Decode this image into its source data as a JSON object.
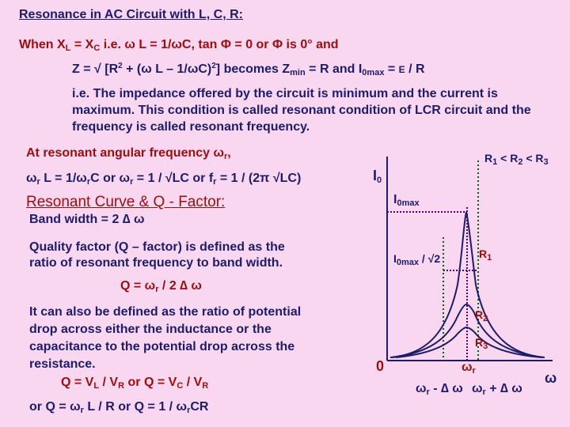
{
  "slide": {
    "title": "Resonance in AC Circuit with L, C, R:",
    "condition": {
      "pre": "When X",
      "l_sub": "L",
      "eq": " = X",
      "c_sub": "C",
      "rest": "   i.e. ω L = 1/ωC,   tan Φ = 0  or Φ is 0°   and"
    },
    "impedance": {
      "a": "Z = √ [R",
      "sup2a": "2",
      "b": " + (ω L – 1/ωC)",
      "sup2b": "2",
      "c": "]  becomes  Z",
      "min_sub": "min",
      "d": " = R  and  I",
      "max_sub": "0max",
      "e": " = ",
      "E": "E",
      "f": " / R"
    },
    "explanation": "i.e. The impedance offered by the circuit is minimum and the current is maximum. This condition is called resonant condition of LCR circuit and the frequency is called resonant frequency.",
    "resonant_heading": "At resonant angular frequency ω",
    "resonant_heading_sub": "r",
    "resonant_heading_end": ",",
    "resonant_formula": {
      "a": "ω",
      "r1": "r",
      "b": " L = 1/ω",
      "r2": "r",
      "c": "C  or  ω",
      "r3": "r",
      "d": " = 1 / √LC  or  f",
      "r4": "r",
      "e": " = 1 / (2π √LC)"
    },
    "curve_heading": "Resonant Curve & Q - Factor:",
    "bandwidth": "Band width = 2 ∆ ω",
    "qfactor_line1": "Quality factor (Q – factor) is defined as the",
    "qfactor_line2": "ratio of resonant frequency to band width.",
    "q_formula": {
      "a": "Q = ω",
      "r": "r",
      "b": " / 2 ∆ ω"
    },
    "alt_lines": [
      "It can also be defined as the ratio of potential",
      "drop across either the inductance or the",
      "capacitance to the potential drop across the",
      "resistance."
    ],
    "q_voltage": {
      "a": "Q = V",
      "l": "L",
      "b": " / V",
      "r1": "R",
      "c": "    or   Q = V",
      "cc": "C",
      "d": " / V",
      "r2": "R"
    },
    "q_last": {
      "a": "or  Q = ω",
      "r1": "r",
      "b": " L / R     or   Q = 1 / ω",
      "r2": "r",
      "c": "CR"
    }
  },
  "graph": {
    "r_order": {
      "a": "R",
      "s1": "1",
      "b": " < R",
      "s2": "2",
      "c": " < R",
      "s3": "3"
    },
    "y_label": "I",
    "y_label_sub": "0",
    "imax": "I",
    "imax_sub": "0max",
    "ihalf": "I",
    "ihalf_sub": "0max",
    "ihalf_end": " / √2",
    "R1": "R",
    "R1_sub": "1",
    "R2": "R",
    "R2_sub": "2",
    "R3": "R",
    "R3_sub": "3",
    "origin": "0",
    "wr": "ω",
    "wr_sub": "r",
    "wminus": "ω",
    "wminus_sub": "r",
    "wminus_end": " - ∆ ω",
    "wplus": "ω",
    "wplus_sub": "r",
    "wplus_end": " + ∆ ω",
    "x_label": "ω",
    "colors": {
      "axis": "#1c1c6b",
      "curves": "#1c1c6b",
      "dotted_purple": "#4b0082",
      "dotted_green": "#006400",
      "label_red": "#9c0d0d"
    }
  }
}
